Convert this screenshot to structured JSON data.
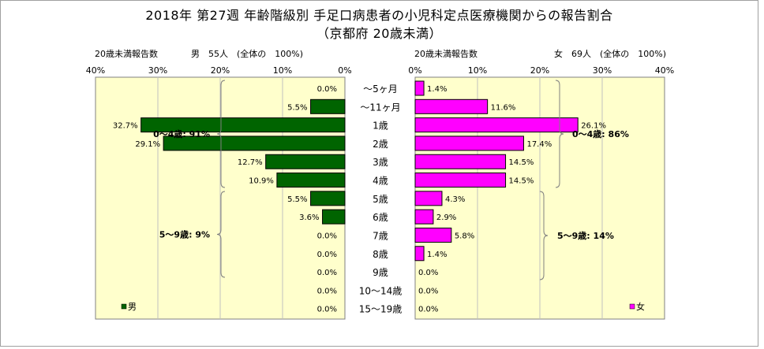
{
  "title_line1": "2018年 第27週 年齢階級別 手足口病患者の小児科定点医療機関からの報告割合",
  "title_line2": "（京都府 20歳未満）",
  "left_header": {
    "left": "20歳未満報告数",
    "right": "男　55人　(全体の　100%)"
  },
  "right_header": {
    "left": "20歳未満報告数",
    "right": "女　69人　(全体の　100%)"
  },
  "left_ticks": [
    "40%",
    "30%",
    "20%",
    "10%",
    "0%"
  ],
  "right_ticks": [
    "0%",
    "10%",
    "20%",
    "30%",
    "40%"
  ],
  "left_brackets": [
    {
      "label": "0〜4歳: 91%"
    },
    {
      "label": "5〜9歳: 9%"
    }
  ],
  "right_brackets": [
    {
      "label": "0〜4歳: 86%"
    },
    {
      "label": "5〜9歳: 14%"
    }
  ],
  "colors": {
    "male": "#006400",
    "female": "#ff00ff",
    "plot_bg": "#ffffcc",
    "grid": "#c0c0c0"
  },
  "chart_data": {
    "type": "bar",
    "categories": [
      "〜5ヶ月",
      "〜11ヶ月",
      "1歳",
      "2歳",
      "3歳",
      "4歳",
      "5歳",
      "6歳",
      "7歳",
      "8歳",
      "9歳",
      "10〜14歳",
      "15〜19歳"
    ],
    "xlim": [
      0,
      40
    ],
    "series": [
      {
        "name": "男",
        "values": [
          0.0,
          5.5,
          32.7,
          29.1,
          12.7,
          10.9,
          5.5,
          3.6,
          0.0,
          0.0,
          0.0,
          0.0,
          0.0
        ]
      },
      {
        "name": "女",
        "values": [
          1.4,
          11.6,
          26.1,
          17.4,
          14.5,
          14.5,
          4.3,
          2.9,
          5.8,
          1.4,
          0.0,
          0.0,
          0.0
        ]
      }
    ]
  }
}
